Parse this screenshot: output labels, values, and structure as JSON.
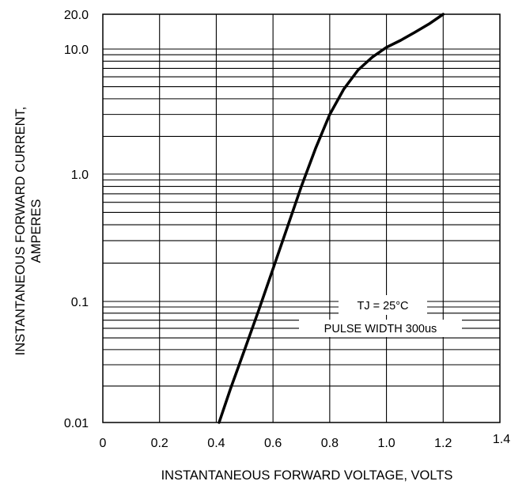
{
  "chart_data": {
    "type": "line",
    "xlabel": "INSTANTANEOUS FORWARD VOLTAGE, VOLTS",
    "ylabel_lines": [
      "INSTANTANEOUS FORWARD CURRENT,",
      "AMPERES"
    ],
    "x_scale": "linear",
    "y_scale": "log",
    "xlim": [
      0,
      1.4
    ],
    "ylim": [
      0.01,
      20
    ],
    "x_ticks": [
      {
        "value": 0,
        "label": "0"
      },
      {
        "value": 0.2,
        "label": "0.2"
      },
      {
        "value": 0.4,
        "label": "0.4"
      },
      {
        "value": 0.6,
        "label": "0.6"
      },
      {
        "value": 0.8,
        "label": "0.8"
      },
      {
        "value": 1.0,
        "label": "1.0"
      },
      {
        "value": 1.2,
        "label": "1.2"
      },
      {
        "value": 1.4,
        "label": "1.4"
      }
    ],
    "y_ticks": [
      {
        "value": 0.01,
        "label": "0.01"
      },
      {
        "value": 0.1,
        "label": "0.1"
      },
      {
        "value": 1.0,
        "label": "1.0"
      },
      {
        "value": 10.0,
        "label": "10.0"
      },
      {
        "value": 20.0,
        "label": "20.0"
      }
    ],
    "grid": true,
    "series": [
      {
        "x": [
          0.41,
          0.45,
          0.5,
          0.55,
          0.6,
          0.65,
          0.7,
          0.75,
          0.8,
          0.85,
          0.9,
          0.95,
          1.0,
          1.05,
          1.1,
          1.15,
          1.2
        ],
        "y": [
          0.01,
          0.019,
          0.04,
          0.085,
          0.18,
          0.38,
          0.8,
          1.6,
          3.0,
          4.8,
          6.8,
          8.6,
          10.5,
          12.5,
          14.8,
          17.2,
          20.0
        ]
      }
    ],
    "annotations": [
      "TJ = 25°C",
      "PULSE WIDTH 300us"
    ]
  }
}
